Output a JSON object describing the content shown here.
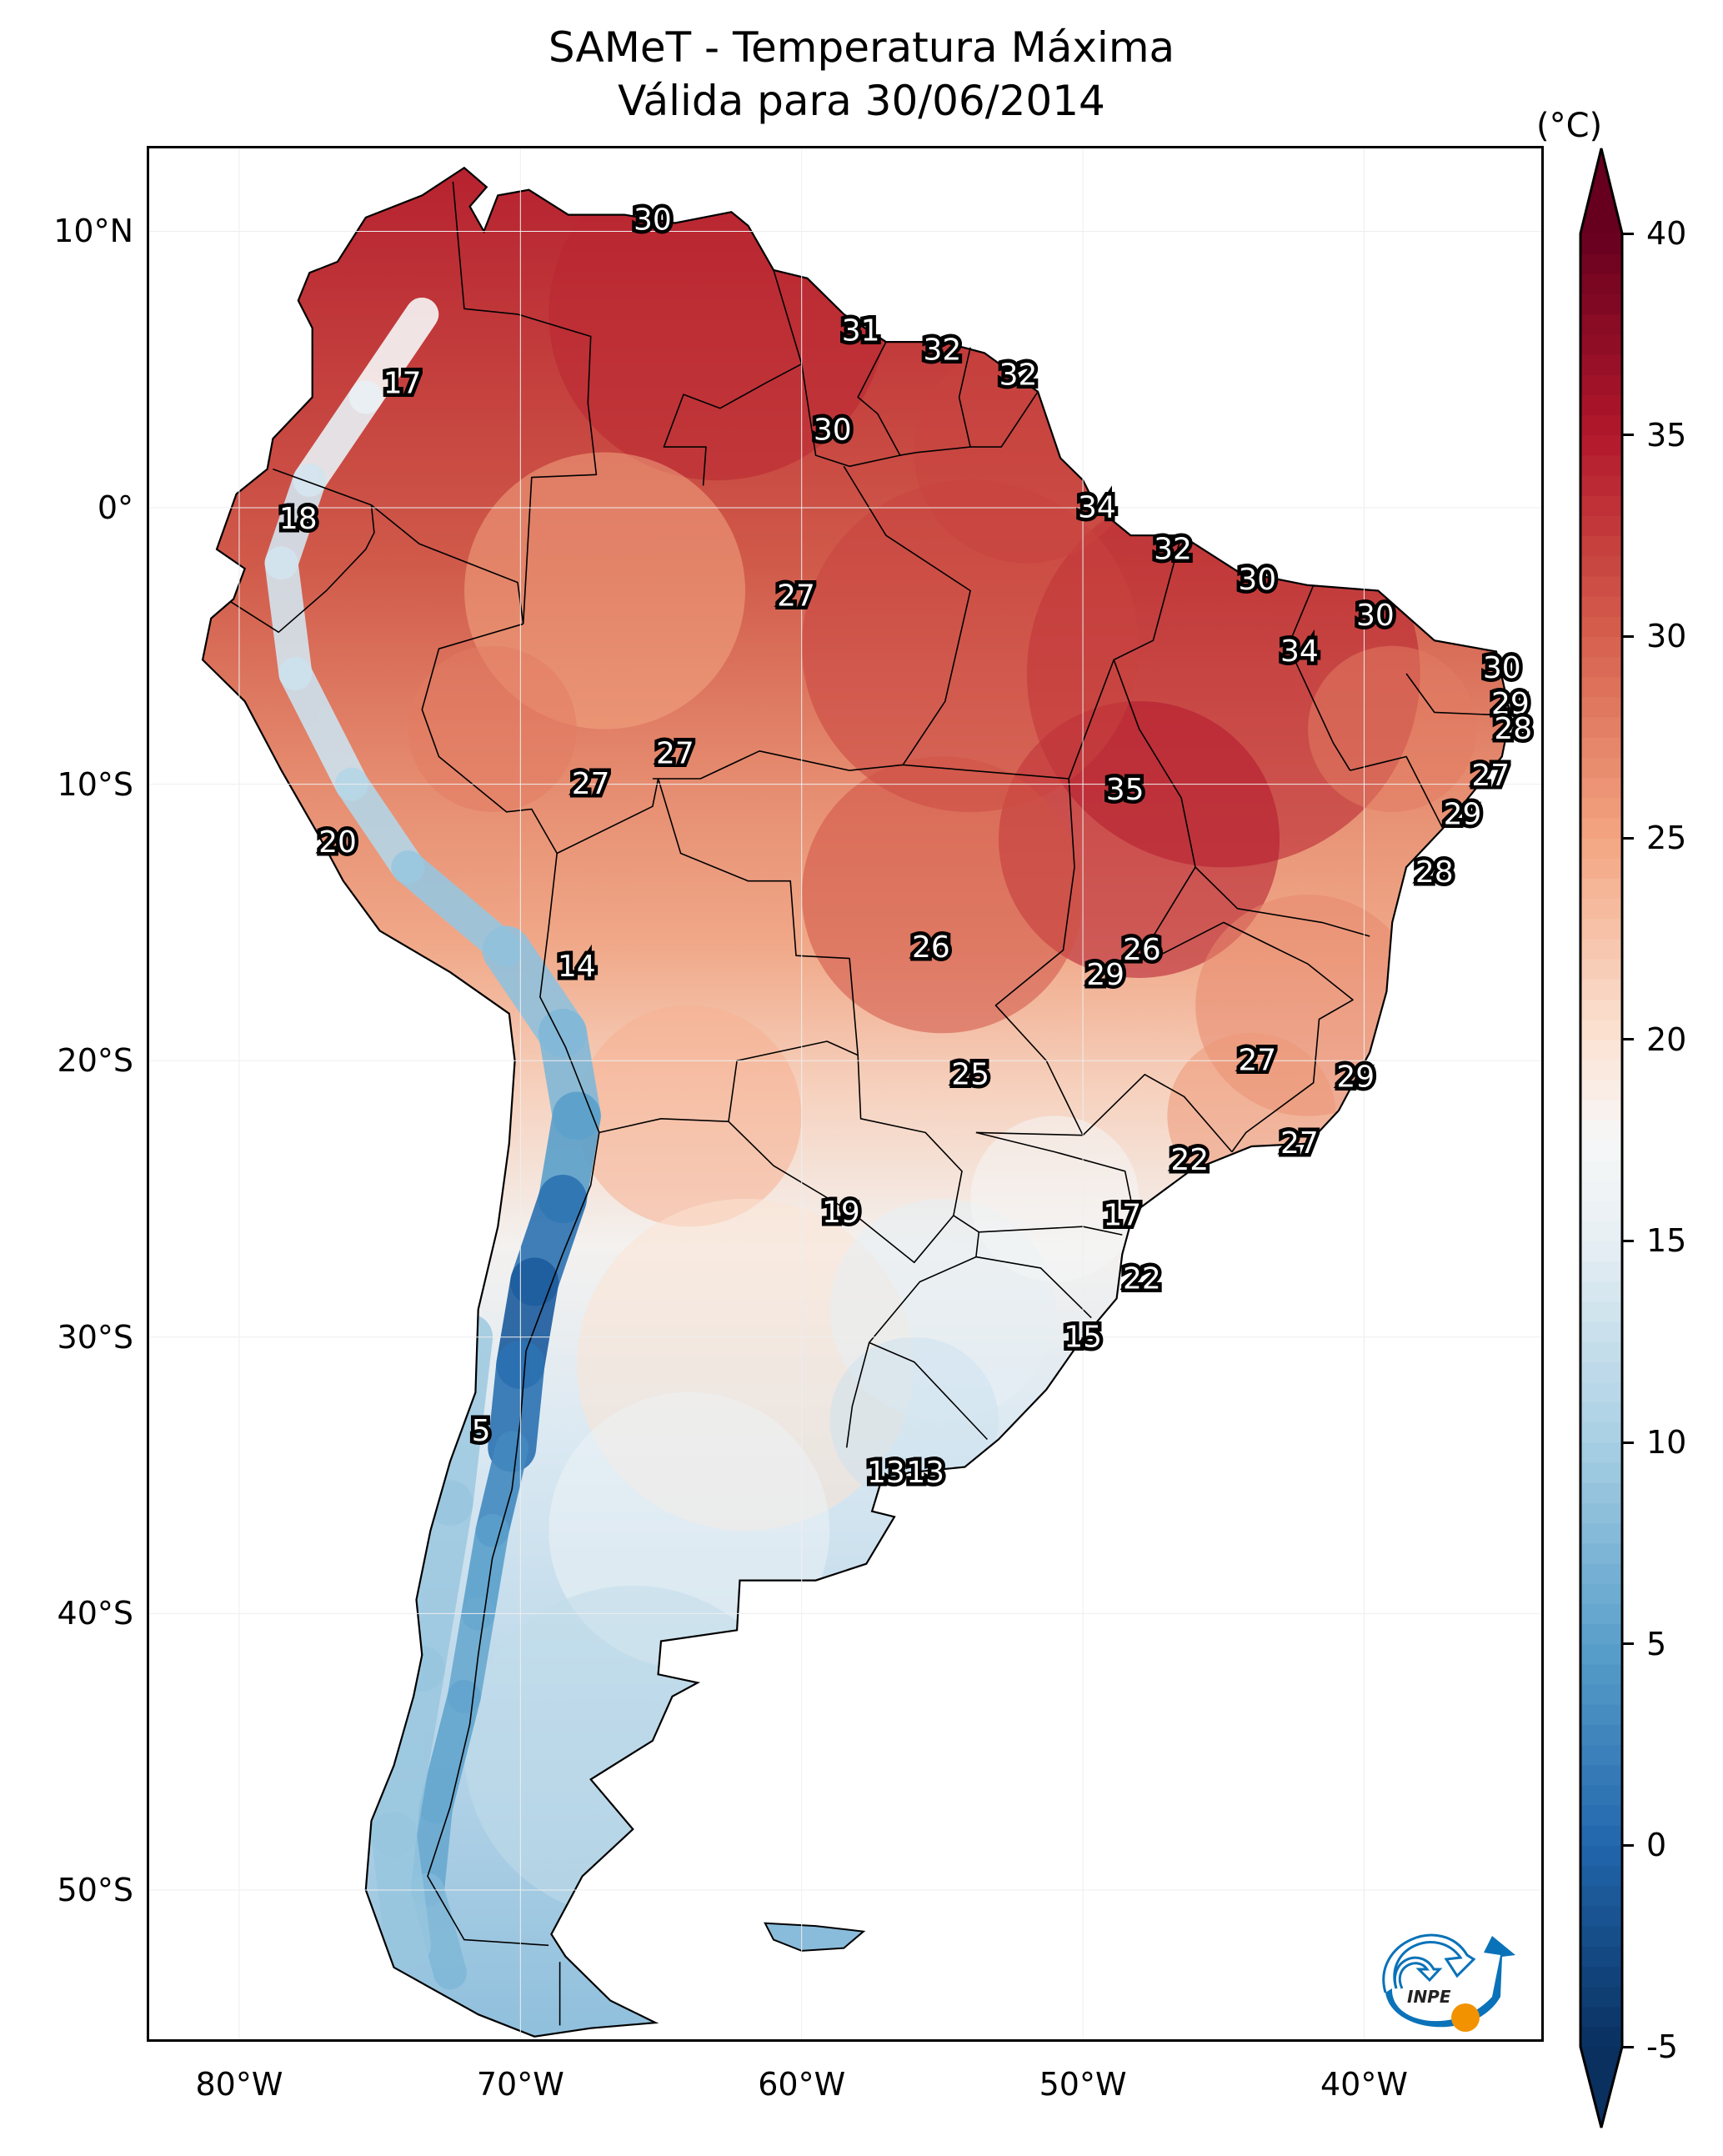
{
  "title": {
    "line1": "SAMeT - Temperatura Máxima",
    "line2": "Válida para 30/06/2014"
  },
  "logo": {
    "text": "INPE",
    "icon": "inpe-logo-icon"
  },
  "colors": {
    "cmap": "RdBu_r",
    "cmap_stops": [
      {
        "v": -5,
        "c": "#09305f"
      },
      {
        "v": 0,
        "c": "#2166ac"
      },
      {
        "v": 5,
        "c": "#5aa0cb"
      },
      {
        "v": 10,
        "c": "#a8cfe4"
      },
      {
        "v": 15,
        "c": "#e6eff4"
      },
      {
        "v": 17.5,
        "c": "#f7f7f7"
      },
      {
        "v": 20,
        "c": "#fbe3d4"
      },
      {
        "v": 25,
        "c": "#f3a582"
      },
      {
        "v": 30,
        "c": "#d6604d"
      },
      {
        "v": 35,
        "c": "#b2182b"
      },
      {
        "v": 40,
        "c": "#67001f"
      }
    ],
    "border": "#000000",
    "label_fill": "#ffffff",
    "label_stroke": "#000000",
    "logo_blue": "#0a72b8",
    "logo_orange": "#f39200"
  },
  "chart_data": {
    "type": "heatmap",
    "title": "SAMeT - Temperatura Máxima / Válida para 30/06/2014",
    "variable": "Temperatura Máxima",
    "date": "30/06/2014",
    "region": "South America",
    "xlabel": "",
    "ylabel": "",
    "xlim": [
      -83.2,
      -33.7
    ],
    "ylim": [
      -55.4,
      13.0
    ],
    "x_ticks": [
      {
        "value": -80,
        "label": "80°W"
      },
      {
        "value": -70,
        "label": "70°W"
      },
      {
        "value": -60,
        "label": "60°W"
      },
      {
        "value": -50,
        "label": "50°W"
      },
      {
        "value": -40,
        "label": "40°W"
      }
    ],
    "y_ticks": [
      {
        "value": 10,
        "label": "10°N"
      },
      {
        "value": 0,
        "label": "0°"
      },
      {
        "value": -10,
        "label": "10°S"
      },
      {
        "value": -20,
        "label": "20°S"
      },
      {
        "value": -30,
        "label": "30°S"
      },
      {
        "value": -40,
        "label": "40°S"
      },
      {
        "value": -50,
        "label": "50°S"
      }
    ],
    "colorbar": {
      "label": "(°C)",
      "min": -5,
      "max": 40,
      "extend": "both",
      "orientation": "vertical",
      "placement": "right",
      "ticks": [
        {
          "value": 40,
          "label": "40"
        },
        {
          "value": 35,
          "label": "35"
        },
        {
          "value": 30,
          "label": "30"
        },
        {
          "value": 25,
          "label": "25"
        },
        {
          "value": 20,
          "label": "20"
        },
        {
          "value": 15,
          "label": "15"
        },
        {
          "value": 10,
          "label": "10"
        },
        {
          "value": 5,
          "label": "5"
        },
        {
          "value": 0,
          "label": "0"
        },
        {
          "value": -5,
          "label": "-5"
        }
      ]
    },
    "annotations": [
      {
        "lon": -65.3,
        "lat": 10.4,
        "value": 30
      },
      {
        "lon": -74.2,
        "lat": 4.5,
        "value": 17
      },
      {
        "lon": -57.9,
        "lat": 6.4,
        "value": 31
      },
      {
        "lon": -55.0,
        "lat": 5.7,
        "value": 32
      },
      {
        "lon": -52.3,
        "lat": 4.8,
        "value": 32
      },
      {
        "lon": -58.9,
        "lat": 2.8,
        "value": 30
      },
      {
        "lon": -77.9,
        "lat": -0.4,
        "value": 18
      },
      {
        "lon": -49.5,
        "lat": 0.0,
        "value": 34
      },
      {
        "lon": -46.8,
        "lat": -1.5,
        "value": 32
      },
      {
        "lon": -43.8,
        "lat": -2.6,
        "value": 30
      },
      {
        "lon": -60.2,
        "lat": -3.2,
        "value": 27
      },
      {
        "lon": -39.6,
        "lat": -3.9,
        "value": 30
      },
      {
        "lon": -42.3,
        "lat": -5.2,
        "value": 34
      },
      {
        "lon": -35.1,
        "lat": -5.8,
        "value": 30
      },
      {
        "lon": -34.8,
        "lat": -7.1,
        "value": 29
      },
      {
        "lon": -34.7,
        "lat": -8.0,
        "value": 28
      },
      {
        "lon": -64.5,
        "lat": -8.9,
        "value": 27
      },
      {
        "lon": -67.5,
        "lat": -10.0,
        "value": 27
      },
      {
        "lon": -48.5,
        "lat": -10.2,
        "value": 35
      },
      {
        "lon": -35.5,
        "lat": -9.7,
        "value": 27
      },
      {
        "lon": -36.5,
        "lat": -11.1,
        "value": 29
      },
      {
        "lon": -76.5,
        "lat": -12.1,
        "value": 20
      },
      {
        "lon": -37.5,
        "lat": -13.2,
        "value": 28
      },
      {
        "lon": -68.0,
        "lat": -16.6,
        "value": 14
      },
      {
        "lon": -55.4,
        "lat": -15.9,
        "value": 26
      },
      {
        "lon": -47.9,
        "lat": -16.0,
        "value": 26
      },
      {
        "lon": -49.2,
        "lat": -16.9,
        "value": 29
      },
      {
        "lon": -43.8,
        "lat": -20.0,
        "value": 27
      },
      {
        "lon": -54.0,
        "lat": -20.5,
        "value": 25
      },
      {
        "lon": -40.3,
        "lat": -20.6,
        "value": 29
      },
      {
        "lon": -42.3,
        "lat": -23.0,
        "value": 27
      },
      {
        "lon": -46.2,
        "lat": -23.6,
        "value": 22
      },
      {
        "lon": -58.6,
        "lat": -25.5,
        "value": 19
      },
      {
        "lon": -48.6,
        "lat": -25.6,
        "value": 17
      },
      {
        "lon": -47.9,
        "lat": -27.9,
        "value": 22
      },
      {
        "lon": -50.0,
        "lat": -30.0,
        "value": 15
      },
      {
        "lon": -71.4,
        "lat": -33.4,
        "value": 5
      },
      {
        "lon": -57.0,
        "lat": -34.9,
        "value": 13
      },
      {
        "lon": -55.6,
        "lat": -34.9,
        "value": 13
      }
    ]
  }
}
